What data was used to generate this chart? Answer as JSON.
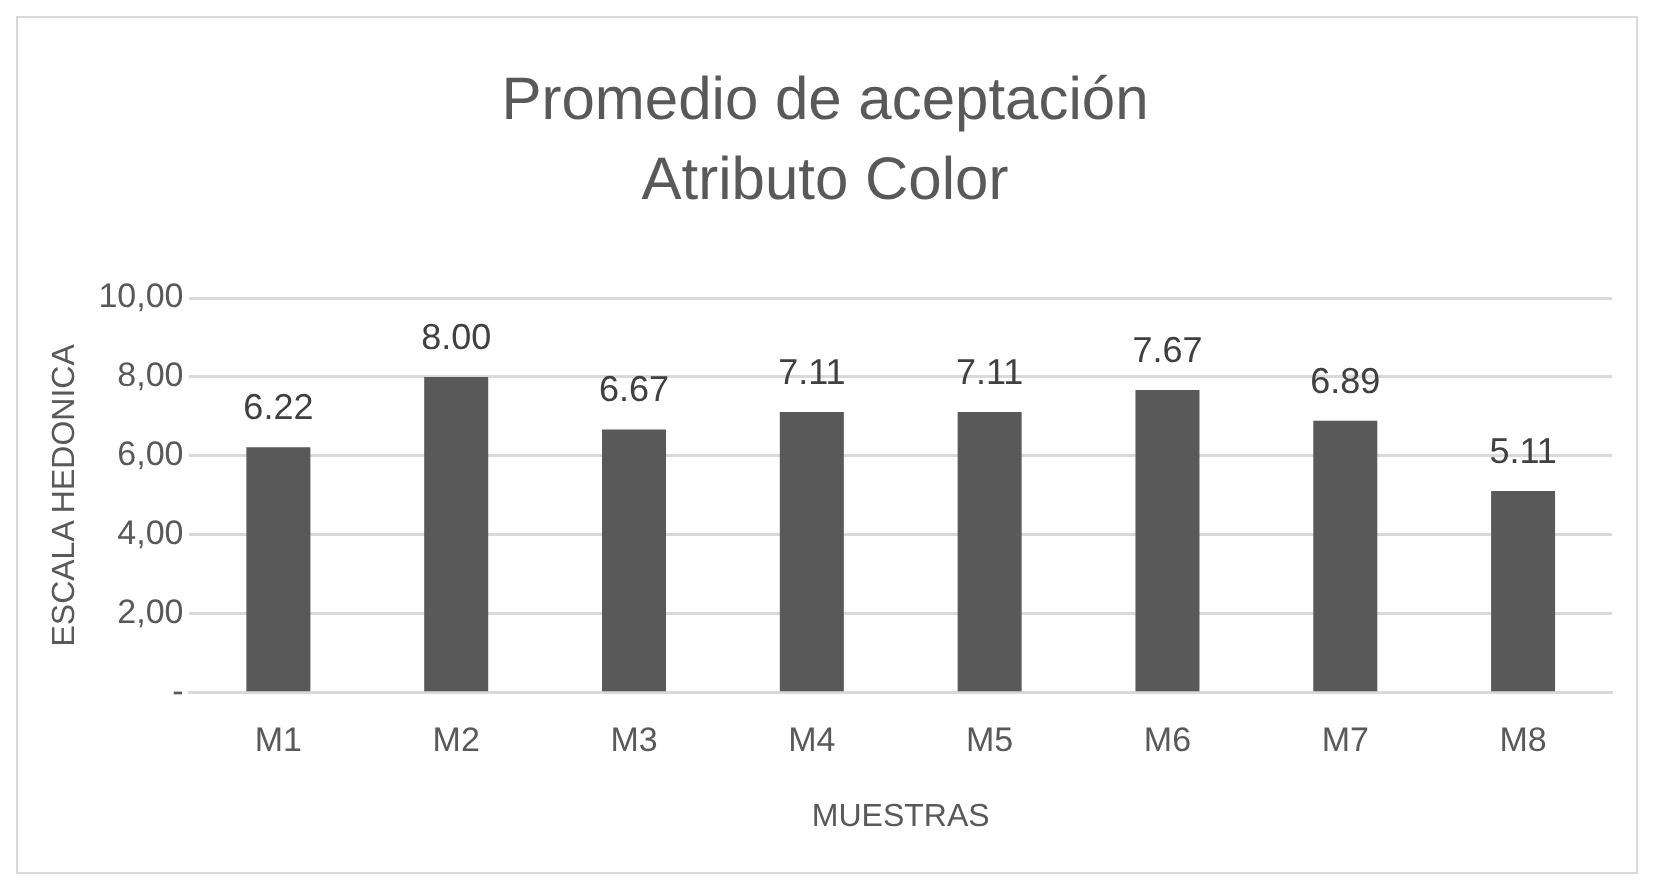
{
  "chart_data": {
    "type": "bar",
    "title": "Promedio de aceptación",
    "subtitle": "Atributo Color",
    "xlabel": "MUESTRAS",
    "ylabel": "ESCALA HEDONICA",
    "categories": [
      "M1",
      "M2",
      "M3",
      "M4",
      "M5",
      "M6",
      "M7",
      "M8"
    ],
    "values": [
      6.22,
      8.0,
      6.67,
      7.11,
      7.11,
      7.67,
      6.89,
      5.11
    ],
    "value_labels": [
      "6.22",
      "8.00",
      "6.67",
      "7.11",
      "7.11",
      "7.67",
      "6.89",
      "5.11"
    ],
    "color": "#595959",
    "ylim": [
      0,
      10
    ],
    "yticks": [
      {
        "value": 0,
        "label": "-"
      },
      {
        "value": 2,
        "label": "2,00"
      },
      {
        "value": 4,
        "label": "4,00"
      },
      {
        "value": 6,
        "label": "6,00"
      },
      {
        "value": 8,
        "label": "8,00"
      },
      {
        "value": 10,
        "label": "10,00"
      }
    ],
    "grid": "y",
    "legend": false
  }
}
